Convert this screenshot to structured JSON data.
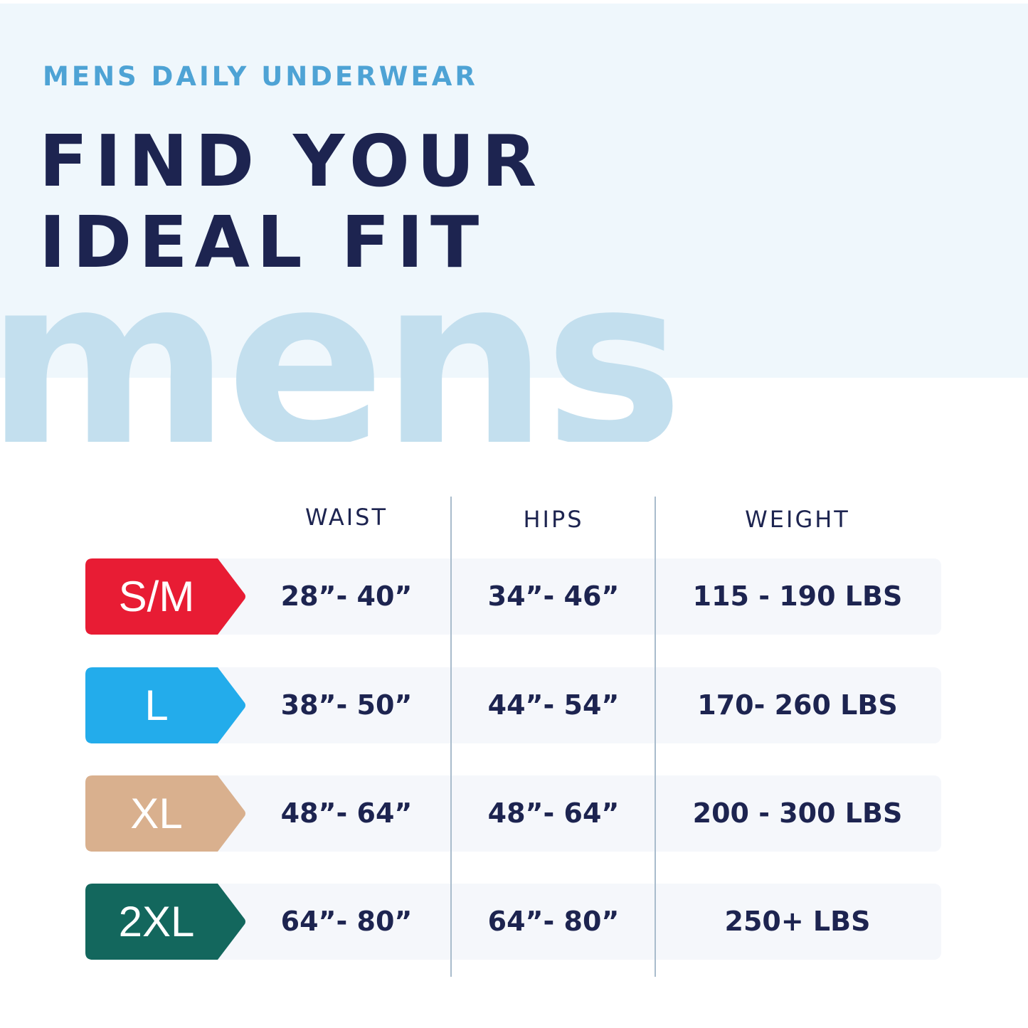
{
  "header": {
    "kicker": "MENS DAILY UNDERWEAR",
    "title_line1": "FIND YOUR",
    "title_line2": "IDEAL FIT",
    "watermark": "mens"
  },
  "columns": [
    "WAIST",
    "HIPS",
    "WEIGHT"
  ],
  "rows": [
    {
      "size": "S/M",
      "color": "#e81c34",
      "waist": "28”- 40”",
      "hips": "34”- 46”",
      "weight": "115 - 190 LBS"
    },
    {
      "size": "L",
      "color": "#23aceb",
      "waist": "38”- 50”",
      "hips": "44”- 54”",
      "weight": "170- 260 LBS"
    },
    {
      "size": "XL",
      "color": "#d9b08e",
      "waist": "48”- 64”",
      "hips": "48”- 64”",
      "weight": "200 - 300 LBS"
    },
    {
      "size": "2XL",
      "color": "#13675d",
      "waist": "64”- 80”",
      "hips": "64”- 80”",
      "weight": "250+ LBS"
    }
  ]
}
